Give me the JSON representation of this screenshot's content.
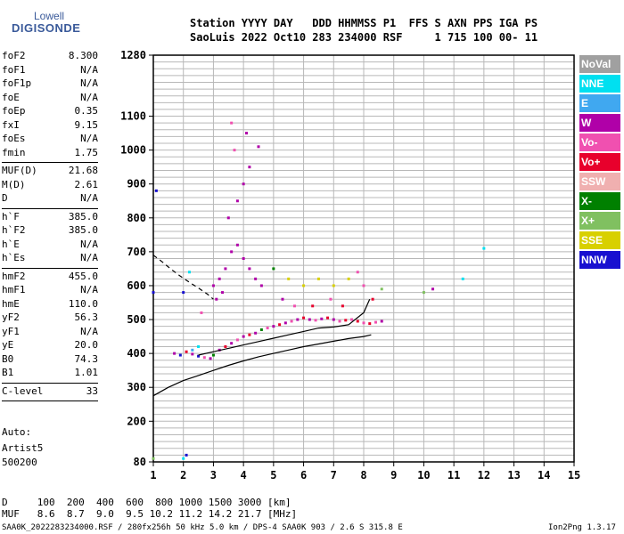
{
  "logo": {
    "line1": "Lowell",
    "line2": "DIGISONDE"
  },
  "header": {
    "line1": "Station YYYY DAY   DDD HHMMSS P1  FFS S AXN PPS IGA PS",
    "line2": "SaoLuis 2022 Oct10 283 234000 RSF     1 715 100 00- 11"
  },
  "params": [
    [
      {
        "label": "foF2",
        "value": "8.300"
      },
      {
        "label": "foF1",
        "value": "N/A"
      },
      {
        "label": "foF1p",
        "value": "N/A"
      },
      {
        "label": "foE",
        "value": "N/A"
      },
      {
        "label": "foEp",
        "value": "0.35"
      },
      {
        "label": "fxI",
        "value": "9.15"
      },
      {
        "label": "foEs",
        "value": "N/A"
      },
      {
        "label": "fmin",
        "value": "1.75"
      }
    ],
    [
      {
        "label": "MUF(D)",
        "value": "21.68"
      },
      {
        "label": "M(D)",
        "value": "2.61"
      },
      {
        "label": "D",
        "value": "N/A"
      }
    ],
    [
      {
        "label": "h`F",
        "value": "385.0"
      },
      {
        "label": "h`F2",
        "value": "385.0"
      },
      {
        "label": "h`E",
        "value": "N/A"
      },
      {
        "label": "h`Es",
        "value": "N/A"
      }
    ],
    [
      {
        "label": "hmF2",
        "value": "455.0"
      },
      {
        "label": "hmF1",
        "value": "N/A"
      },
      {
        "label": "hmE",
        "value": "110.0"
      },
      {
        "label": "yF2",
        "value": "56.3"
      },
      {
        "label": "yF1",
        "value": "N/A"
      },
      {
        "label": "yE",
        "value": "20.0"
      },
      {
        "label": "B0",
        "value": "74.3"
      },
      {
        "label": "B1",
        "value": "1.01"
      }
    ],
    [
      {
        "label": "C-level",
        "value": "33"
      }
    ]
  ],
  "auto": {
    "line1": "Auto:",
    "line2": "Artist5",
    "line3": "500200"
  },
  "legend": [
    {
      "label": "NoVal",
      "color": "#a0a0a0"
    },
    {
      "label": "NNE",
      "color": "#00e0f0"
    },
    {
      "label": "E",
      "color": "#40a8f0"
    },
    {
      "label": "W",
      "color": "#b000a8"
    },
    {
      "label": "Vo-",
      "color": "#f050b0"
    },
    {
      "label": "Vo+",
      "color": "#e8002c"
    },
    {
      "label": "SSW",
      "color": "#f0b0b0"
    },
    {
      "label": "X-",
      "color": "#008000"
    },
    {
      "label": "X+",
      "color": "#80c060"
    },
    {
      "label": "SSE",
      "color": "#d8d000"
    },
    {
      "label": "NNW",
      "color": "#1810d0"
    }
  ],
  "footer": {
    "line1": "D     100  200  400  600  800 1000 1500 3000 [km]",
    "line2": "MUF   8.6  8.7  9.0  9.5 10.2 11.2 14.2 21.7 [MHz]",
    "line3": "SAA0K_2022283234000.RSF / 280fx256h 50 kHz 5.0 km / DPS-4 SAA0K 903 / 2.6 S 315.8 E",
    "version": "Ion2Png 1.3.17"
  },
  "chart_data": {
    "type": "scatter",
    "xlim": [
      1,
      15
    ],
    "ylim": [
      80,
      1280
    ],
    "x_ticks": [
      "1",
      "2",
      "3",
      "4",
      "5",
      "6",
      "7",
      "8",
      "9",
      "10",
      "11",
      "12",
      "13",
      "14",
      "15"
    ],
    "y_ticks": [
      {
        "value": 80,
        "label": "80"
      },
      {
        "value": 200,
        "label": "200"
      },
      {
        "value": 300,
        "label": "300"
      },
      {
        "value": 400,
        "label": "400"
      },
      {
        "value": 500,
        "label": "500"
      },
      {
        "value": 600,
        "label": "600"
      },
      {
        "value": 700,
        "label": "700"
      },
      {
        "value": 800,
        "label": "800"
      },
      {
        "value": 900,
        "label": "900"
      },
      {
        "value": 1000,
        "label": "1000"
      },
      {
        "value": 1100,
        "label": "1100"
      },
      {
        "value": 1280,
        "label": "1280"
      }
    ],
    "grid": true,
    "legend_position": "right",
    "scatter_points": [
      [
        1.7,
        400,
        "W"
      ],
      [
        1.9,
        395,
        "NNW"
      ],
      [
        2.1,
        405,
        "Vo+"
      ],
      [
        2.3,
        398,
        "W"
      ],
      [
        2.5,
        392,
        "NNW"
      ],
      [
        2.7,
        388,
        "Vo-"
      ],
      [
        2.9,
        385,
        "W"
      ],
      [
        3.0,
        395,
        "X-"
      ],
      [
        3.2,
        410,
        "W"
      ],
      [
        3.4,
        420,
        "Vo+"
      ],
      [
        3.6,
        430,
        "W"
      ],
      [
        3.8,
        440,
        "Vo-"
      ],
      [
        4.0,
        450,
        "W"
      ],
      [
        4.2,
        455,
        "Vo+"
      ],
      [
        4.4,
        460,
        "W"
      ],
      [
        4.6,
        470,
        "X-"
      ],
      [
        4.8,
        475,
        "Vo-"
      ],
      [
        5.0,
        480,
        "W"
      ],
      [
        5.2,
        485,
        "Vo+"
      ],
      [
        5.4,
        490,
        "W"
      ],
      [
        5.6,
        495,
        "Vo-"
      ],
      [
        5.8,
        500,
        "W"
      ],
      [
        6.0,
        505,
        "Vo+"
      ],
      [
        6.2,
        500,
        "W"
      ],
      [
        6.4,
        498,
        "Vo-"
      ],
      [
        6.6,
        502,
        "W"
      ],
      [
        6.8,
        505,
        "Vo+"
      ],
      [
        7.0,
        500,
        "W"
      ],
      [
        7.2,
        495,
        "Vo-"
      ],
      [
        7.4,
        498,
        "Vo+"
      ],
      [
        7.6,
        500,
        "Vo-"
      ],
      [
        7.8,
        495,
        "Vo+"
      ],
      [
        8.0,
        490,
        "Vo-"
      ],
      [
        8.2,
        488,
        "Vo+"
      ],
      [
        8.4,
        492,
        "Vo-"
      ],
      [
        8.6,
        495,
        "W"
      ],
      [
        3.0,
        600,
        "W"
      ],
      [
        3.2,
        620,
        "W"
      ],
      [
        3.4,
        650,
        "W"
      ],
      [
        3.6,
        700,
        "W"
      ],
      [
        3.8,
        720,
        "W"
      ],
      [
        4.0,
        680,
        "W"
      ],
      [
        4.2,
        650,
        "W"
      ],
      [
        4.4,
        620,
        "W"
      ],
      [
        4.6,
        600,
        "W"
      ],
      [
        3.5,
        800,
        "W"
      ],
      [
        3.8,
        850,
        "W"
      ],
      [
        4.0,
        900,
        "W"
      ],
      [
        4.2,
        950,
        "W"
      ],
      [
        3.7,
        1000,
        "Vo-"
      ],
      [
        4.1,
        1050,
        "W"
      ],
      [
        3.6,
        1080,
        "Vo-"
      ],
      [
        4.5,
        1010,
        "W"
      ],
      [
        5.0,
        650,
        "X-"
      ],
      [
        5.5,
        620,
        "SSE"
      ],
      [
        6.0,
        600,
        "SSE"
      ],
      [
        6.5,
        620,
        "SSE"
      ],
      [
        7.0,
        600,
        "SSE"
      ],
      [
        7.5,
        620,
        "SSE"
      ],
      [
        7.8,
        640,
        "Vo-"
      ],
      [
        8.0,
        600,
        "Vo-"
      ],
      [
        8.3,
        560,
        "Vo+"
      ],
      [
        8.6,
        590,
        "X+"
      ],
      [
        10.3,
        590,
        "W"
      ],
      [
        10.0,
        580,
        "X+"
      ],
      [
        11.3,
        620,
        "NNE"
      ],
      [
        12.0,
        710,
        "NNE"
      ],
      [
        2.2,
        640,
        "NNE"
      ],
      [
        2.0,
        580,
        "NNW"
      ],
      [
        2.6,
        520,
        "Vo-"
      ],
      [
        3.1,
        560,
        "W"
      ],
      [
        3.3,
        580,
        "W"
      ],
      [
        5.3,
        560,
        "W"
      ],
      [
        5.7,
        540,
        "Vo-"
      ],
      [
        6.3,
        540,
        "Vo+"
      ],
      [
        6.9,
        560,
        "Vo-"
      ],
      [
        7.3,
        540,
        "Vo+"
      ],
      [
        2.0,
        90,
        "NNE"
      ],
      [
        2.1,
        100,
        "NNW"
      ],
      [
        1.0,
        90,
        "X+"
      ],
      [
        1.1,
        880,
        "NNW"
      ],
      [
        1.0,
        580,
        "NNW"
      ],
      [
        2.3,
        410,
        "E"
      ],
      [
        2.5,
        420,
        "NNE"
      ]
    ],
    "curves": {
      "solid_lower": [
        [
          1,
          275
        ],
        [
          1.5,
          300
        ],
        [
          2,
          320
        ],
        [
          2.5,
          335
        ],
        [
          3,
          350
        ],
        [
          3.5,
          365
        ],
        [
          4,
          378
        ],
        [
          4.5,
          390
        ],
        [
          5,
          400
        ],
        [
          5.5,
          410
        ],
        [
          6,
          420
        ],
        [
          6.5,
          428
        ],
        [
          7,
          436
        ],
        [
          7.5,
          444
        ],
        [
          8,
          450
        ],
        [
          8.25,
          455
        ]
      ],
      "solid_upper": [
        [
          2.5,
          395
        ],
        [
          3,
          405
        ],
        [
          3.5,
          415
        ],
        [
          4,
          425
        ],
        [
          4.5,
          435
        ],
        [
          5,
          445
        ],
        [
          5.5,
          455
        ],
        [
          6,
          465
        ],
        [
          6.5,
          475
        ],
        [
          7,
          478
        ],
        [
          7.5,
          485
        ],
        [
          8,
          520
        ],
        [
          8.2,
          560
        ]
      ],
      "dashed": [
        [
          1,
          690
        ],
        [
          1.3,
          670
        ],
        [
          1.6,
          648
        ],
        [
          1.9,
          628
        ],
        [
          2.2,
          610
        ],
        [
          2.5,
          593
        ],
        [
          2.8,
          575
        ],
        [
          3.0,
          560
        ]
      ]
    }
  }
}
